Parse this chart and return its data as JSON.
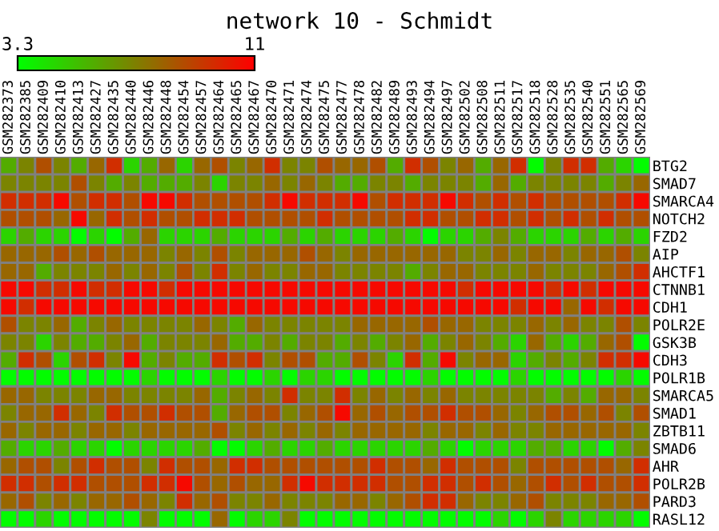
{
  "chart_data": {
    "type": "heatmap",
    "title": "network 10 - Schmidt",
    "categories": [
      "GSM282373",
      "GSM282385",
      "GSM282409",
      "GSM282410",
      "GSM282413",
      "GSM282427",
      "GSM282435",
      "GSM282440",
      "GSM282446",
      "GSM282448",
      "GSM282454",
      "GSM282457",
      "GSM282464",
      "GSM282465",
      "GSM282467",
      "GSM282470",
      "GSM282471",
      "GSM282474",
      "GSM282475",
      "GSM282477",
      "GSM282478",
      "GSM282482",
      "GSM282489",
      "GSM282493",
      "GSM282494",
      "GSM282497",
      "GSM282502",
      "GSM282508",
      "GSM282511",
      "GSM282517",
      "GSM282518",
      "GSM282528",
      "GSM282535",
      "GSM282540",
      "GSM282551",
      "GSM282565",
      "GSM282569"
    ],
    "y_categories": [
      "BTG2",
      "SMAD7",
      "SMARCA4",
      "NOTCH2",
      "FZD2",
      "AIP",
      "AHCTF1",
      "CTNNB1",
      "CDH1",
      "POLR2E",
      "GSK3B",
      "CDH3",
      "POLR1B",
      "SMARCA5",
      "SMAD1",
      "ZBTB11",
      "SMAD6",
      "AHR",
      "POLR2B",
      "PARD3",
      "RASL12"
    ],
    "cells": [
      [
        5.8,
        7.0,
        8.6,
        7.0,
        5.8,
        7.9,
        9.6,
        4.6,
        5.8,
        7.9,
        4.6,
        7.9,
        8.6,
        7.0,
        7.9,
        9.6,
        7.0,
        7.0,
        8.6,
        7.9,
        7.9,
        8.6,
        5.8,
        9.6,
        8.6,
        7.0,
        7.9,
        5.8,
        7.9,
        9.6,
        3.4,
        7.0,
        9.6,
        9.6,
        5.8,
        4.6,
        3.4
      ],
      [
        7.0,
        7.0,
        7.0,
        7.0,
        8.6,
        7.0,
        5.8,
        7.0,
        5.8,
        5.8,
        5.8,
        7.0,
        4.6,
        7.0,
        7.0,
        7.9,
        7.0,
        7.9,
        7.0,
        5.8,
        5.8,
        7.0,
        7.0,
        5.8,
        7.0,
        7.0,
        7.0,
        5.8,
        7.9,
        5.8,
        7.0,
        7.0,
        7.0,
        7.0,
        5.8,
        7.0,
        7.9
      ],
      [
        9.6,
        9.6,
        9.6,
        10.7,
        8.6,
        9.6,
        9.6,
        8.6,
        10.7,
        10.7,
        9.6,
        8.6,
        8.6,
        8.6,
        8.6,
        9.6,
        10.7,
        9.6,
        9.6,
        9.6,
        10.7,
        8.6,
        9.6,
        9.6,
        9.6,
        10.7,
        9.6,
        8.6,
        9.6,
        8.6,
        9.6,
        8.6,
        8.6,
        8.6,
        8.6,
        9.6,
        10.7
      ],
      [
        8.6,
        8.6,
        8.6,
        7.9,
        10.7,
        7.9,
        9.6,
        8.6,
        9.6,
        8.6,
        8.6,
        9.6,
        9.6,
        9.6,
        8.6,
        8.6,
        8.6,
        8.6,
        9.6,
        8.6,
        8.6,
        8.6,
        8.6,
        9.6,
        9.6,
        8.6,
        8.6,
        9.6,
        9.6,
        8.6,
        9.6,
        8.6,
        9.6,
        8.6,
        9.6,
        8.6,
        8.6
      ],
      [
        4.6,
        5.8,
        4.6,
        4.6,
        3.4,
        4.6,
        3.4,
        5.8,
        7.9,
        4.6,
        4.6,
        4.6,
        5.8,
        4.6,
        4.6,
        4.6,
        5.8,
        4.6,
        5.8,
        4.6,
        4.6,
        4.6,
        5.8,
        4.6,
        3.4,
        4.6,
        4.6,
        5.8,
        7.0,
        5.8,
        4.6,
        4.6,
        4.6,
        5.8,
        4.6,
        5.8,
        4.6
      ],
      [
        7.9,
        7.9,
        7.9,
        8.6,
        7.9,
        8.6,
        7.9,
        7.9,
        7.9,
        7.0,
        7.9,
        7.0,
        8.6,
        7.0,
        7.9,
        7.9,
        7.9,
        8.6,
        7.9,
        7.0,
        7.9,
        7.9,
        7.9,
        7.9,
        7.9,
        7.9,
        7.0,
        7.0,
        7.9,
        7.0,
        7.9,
        7.9,
        7.0,
        7.9,
        7.9,
        8.6,
        7.0
      ],
      [
        7.9,
        7.9,
        5.8,
        7.0,
        7.0,
        7.0,
        7.9,
        7.0,
        7.9,
        7.0,
        8.6,
        7.0,
        9.6,
        7.0,
        7.9,
        7.0,
        7.0,
        7.9,
        7.9,
        7.0,
        7.0,
        7.0,
        7.0,
        5.8,
        7.0,
        7.9,
        7.9,
        7.0,
        7.0,
        7.0,
        7.9,
        7.0,
        7.0,
        7.0,
        7.9,
        8.6,
        9.6
      ],
      [
        10.7,
        10.7,
        9.6,
        9.6,
        10.7,
        9.6,
        9.6,
        10.7,
        10.7,
        9.6,
        10.7,
        10.7,
        10.7,
        10.7,
        10.7,
        10.7,
        10.7,
        10.7,
        10.7,
        10.7,
        10.7,
        10.7,
        10.7,
        10.7,
        10.7,
        10.7,
        9.6,
        10.7,
        10.7,
        10.7,
        10.7,
        9.6,
        10.7,
        9.6,
        10.7,
        10.7,
        10.7
      ],
      [
        10.7,
        9.6,
        10.7,
        10.7,
        10.7,
        10.7,
        10.7,
        10.7,
        10.7,
        10.7,
        10.7,
        10.7,
        10.7,
        10.7,
        10.7,
        10.7,
        10.7,
        10.7,
        10.7,
        10.7,
        10.7,
        10.7,
        10.7,
        10.7,
        10.7,
        10.7,
        10.7,
        10.7,
        10.7,
        9.6,
        10.7,
        10.7,
        7.9,
        10.7,
        9.6,
        10.7,
        10.7
      ],
      [
        8.6,
        7.0,
        7.0,
        7.9,
        5.8,
        7.0,
        7.9,
        7.0,
        7.0,
        7.0,
        7.0,
        7.9,
        7.0,
        5.8,
        7.9,
        7.0,
        7.0,
        7.0,
        7.0,
        7.0,
        7.9,
        7.9,
        7.9,
        7.9,
        8.6,
        7.9,
        7.9,
        7.0,
        7.0,
        7.0,
        7.9,
        7.0,
        7.9,
        7.0,
        7.0,
        8.6,
        7.0
      ],
      [
        7.0,
        7.0,
        4.6,
        7.0,
        5.8,
        5.8,
        7.0,
        7.9,
        5.8,
        7.0,
        7.0,
        7.0,
        7.9,
        5.8,
        5.8,
        7.0,
        5.8,
        7.0,
        7.0,
        5.8,
        7.0,
        5.8,
        7.0,
        7.9,
        5.8,
        7.0,
        7.9,
        7.0,
        5.8,
        4.6,
        7.9,
        5.8,
        4.6,
        5.8,
        7.9,
        8.6,
        3.4
      ],
      [
        5.8,
        9.6,
        8.6,
        4.6,
        8.6,
        9.6,
        7.0,
        10.7,
        5.8,
        7.0,
        5.8,
        5.8,
        9.6,
        8.6,
        9.6,
        7.0,
        8.6,
        8.6,
        5.8,
        5.8,
        8.6,
        7.0,
        4.6,
        9.6,
        5.8,
        10.7,
        7.0,
        7.9,
        7.9,
        4.6,
        5.8,
        7.0,
        5.8,
        7.0,
        9.6,
        9.6,
        10.7
      ],
      [
        3.4,
        3.4,
        3.4,
        3.4,
        3.4,
        3.4,
        3.4,
        3.4,
        4.6,
        3.4,
        3.4,
        3.4,
        4.6,
        3.4,
        3.4,
        4.6,
        3.4,
        4.6,
        4.6,
        3.4,
        3.4,
        3.4,
        3.4,
        3.4,
        4.6,
        3.4,
        3.4,
        3.4,
        3.4,
        4.6,
        3.4,
        3.4,
        3.4,
        3.4,
        3.4,
        4.6,
        3.4
      ],
      [
        7.9,
        7.9,
        7.0,
        7.0,
        7.0,
        7.9,
        7.9,
        7.0,
        7.0,
        7.0,
        7.0,
        7.9,
        5.8,
        7.0,
        7.9,
        7.0,
        9.6,
        7.0,
        7.0,
        9.6,
        7.0,
        7.9,
        7.0,
        7.9,
        7.0,
        7.9,
        7.0,
        7.0,
        7.0,
        7.0,
        7.0,
        5.8,
        7.0,
        5.8,
        7.9,
        7.9,
        7.0
      ],
      [
        7.0,
        7.9,
        7.9,
        9.6,
        7.9,
        7.0,
        9.6,
        8.6,
        8.6,
        9.6,
        8.6,
        8.6,
        5.8,
        7.9,
        8.6,
        8.6,
        7.0,
        7.9,
        8.6,
        10.7,
        7.9,
        8.6,
        7.9,
        8.6,
        8.6,
        9.6,
        8.6,
        8.6,
        7.9,
        7.0,
        7.9,
        8.6,
        8.6,
        7.9,
        8.6,
        7.0,
        8.6
      ],
      [
        7.9,
        7.0,
        7.9,
        7.9,
        7.0,
        7.9,
        7.9,
        7.0,
        7.9,
        7.9,
        7.9,
        7.9,
        8.6,
        7.0,
        7.9,
        7.0,
        7.9,
        7.0,
        7.9,
        7.0,
        7.9,
        7.9,
        7.9,
        7.9,
        7.0,
        7.9,
        7.9,
        7.0,
        7.9,
        7.0,
        7.0,
        7.9,
        7.9,
        7.9,
        7.9,
        7.9,
        7.0
      ],
      [
        5.8,
        4.6,
        4.6,
        5.8,
        4.6,
        4.6,
        3.4,
        4.6,
        4.6,
        4.6,
        4.6,
        5.8,
        3.4,
        3.4,
        4.6,
        5.8,
        4.6,
        4.6,
        5.8,
        4.6,
        4.6,
        4.6,
        4.6,
        4.6,
        5.8,
        4.6,
        3.4,
        4.6,
        4.6,
        4.6,
        5.8,
        5.8,
        4.6,
        4.6,
        3.4,
        5.8,
        7.0
      ],
      [
        7.9,
        8.6,
        8.6,
        7.0,
        8.6,
        9.6,
        8.6,
        8.6,
        7.0,
        9.6,
        8.6,
        8.6,
        7.9,
        9.6,
        9.6,
        8.6,
        8.6,
        8.6,
        8.6,
        8.6,
        8.6,
        9.6,
        8.6,
        8.6,
        7.9,
        9.6,
        8.6,
        8.6,
        8.6,
        7.0,
        8.6,
        8.6,
        8.6,
        8.6,
        8.6,
        7.9,
        9.6
      ],
      [
        9.6,
        9.6,
        8.6,
        9.6,
        9.6,
        8.6,
        8.6,
        8.6,
        9.6,
        9.6,
        10.7,
        8.6,
        7.9,
        8.6,
        7.9,
        7.9,
        9.6,
        10.7,
        9.6,
        9.6,
        9.6,
        9.6,
        8.6,
        8.6,
        9.6,
        9.6,
        8.6,
        9.6,
        8.6,
        7.9,
        8.6,
        9.6,
        8.6,
        9.6,
        8.6,
        8.6,
        9.6
      ],
      [
        7.9,
        8.6,
        7.0,
        7.9,
        7.0,
        7.9,
        7.9,
        8.6,
        7.9,
        7.0,
        9.6,
        7.9,
        8.6,
        7.0,
        7.0,
        7.9,
        7.0,
        7.0,
        7.0,
        7.9,
        7.9,
        7.0,
        7.9,
        8.6,
        9.6,
        9.6,
        7.9,
        7.0,
        7.0,
        7.9,
        8.6,
        7.0,
        7.0,
        7.0,
        7.9,
        7.9,
        8.6
      ],
      [
        3.4,
        3.4,
        4.6,
        3.4,
        3.4,
        3.4,
        3.4,
        3.4,
        7.0,
        3.4,
        3.4,
        3.4,
        7.9,
        3.4,
        4.6,
        4.6,
        7.0,
        3.4,
        3.4,
        3.4,
        3.4,
        3.4,
        3.4,
        3.4,
        3.4,
        3.4,
        3.4,
        3.4,
        4.6,
        3.4,
        4.6,
        7.0,
        4.6,
        4.6,
        4.6,
        4.6,
        3.4
      ]
    ],
    "clim": [
      3.3,
      11
    ],
    "cticks": [
      3.3,
      11
    ]
  }
}
